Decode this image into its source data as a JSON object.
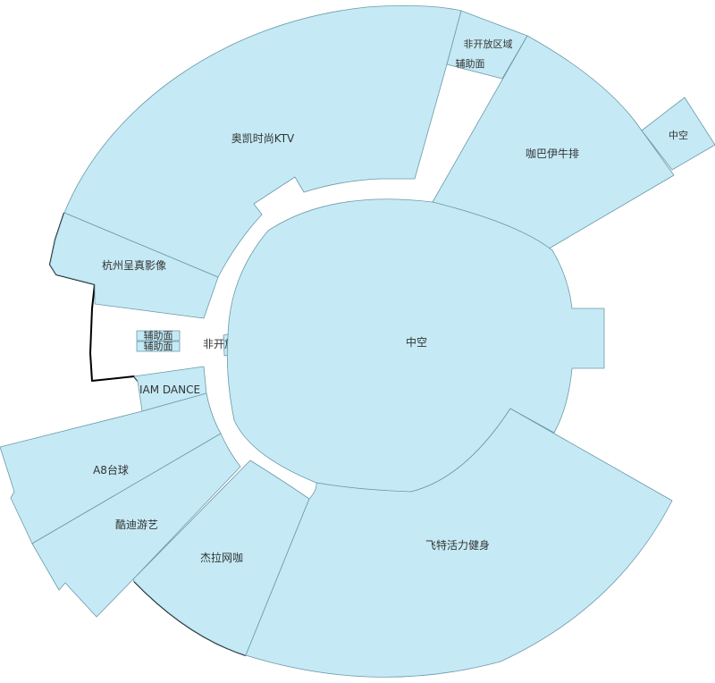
{
  "map": {
    "colors": {
      "room_fill": "#c5eaf5",
      "room_stroke": "#6a98a8",
      "outline": "#000000",
      "label": "#333333"
    },
    "labels": {
      "aokai_ktv": "奥凯时尚KTV",
      "nonopen_top": "非开放区域",
      "aux_top": "辅助面",
      "kaba_steak": "咖巴伊牛排",
      "atrium_small": "中空",
      "hangzhou_photo": "杭州呈真影像",
      "aux_left_1": "辅助面",
      "aux_left_2": "辅助面",
      "nonopen_left": "非开放区域",
      "atrium_center": "中空",
      "iam_dance": "IAM DANCE",
      "a8_billiards": "A8台球",
      "kudi_games": "酷迪游艺",
      "jiela_cafe": "杰拉网咖",
      "feite_fitness": "飞特活力健身"
    }
  }
}
